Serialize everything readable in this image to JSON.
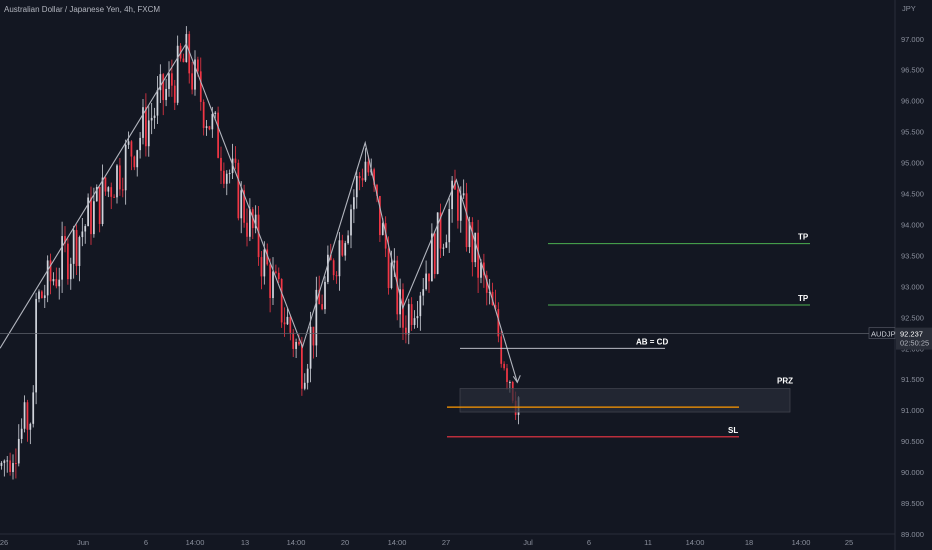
{
  "chart_data": {
    "type": "candlestick",
    "title": "Australian Dollar / Japanese Yen, 4h, FXCM",
    "currency": "JPY",
    "ylim": [
      89.0,
      97.4
    ],
    "y_ticks": [
      "97.000",
      "96.500",
      "96.000",
      "95.500",
      "95.000",
      "94.500",
      "94.000",
      "93.500",
      "93.000",
      "92.500",
      "92.000",
      "91.500",
      "91.000",
      "90.500",
      "90.000",
      "89.500",
      "89.000"
    ],
    "x_ticks": [
      "26",
      "Jun",
      "6",
      "14:00",
      "13",
      "14:00",
      "20",
      "14:00",
      "27",
      "Jul",
      "6",
      "11",
      "14:00",
      "18",
      "14:00",
      "25"
    ],
    "last_price": {
      "symbol": "AUDJPY",
      "price": "92.237",
      "countdown": "02:50:25",
      "value": 92.237
    },
    "pattern_points": [
      {
        "t": 0.0,
        "y": 92.0
      },
      {
        "t": 0.208,
        "y": 96.92
      },
      {
        "t": 0.338,
        "y": 92.02
      },
      {
        "t": 0.408,
        "y": 95.32
      },
      {
        "t": 0.45,
        "y": 92.65
      },
      {
        "t": 0.51,
        "y": 94.72
      },
      {
        "t": 0.578,
        "y": 91.45
      }
    ],
    "levels": [
      {
        "label": "TP",
        "value": 93.69,
        "color": "#4caf50"
      },
      {
        "label": "TP",
        "value": 92.7,
        "color": "#4caf50"
      },
      {
        "label": "AB = CD",
        "value": 92.0,
        "color": "#d1d4dc"
      },
      {
        "label": "PRZ",
        "value_high": 91.35,
        "value_low": 90.97,
        "color": "#2a2e39"
      },
      {
        "label": "",
        "value": 91.05,
        "color": "#ff9800"
      },
      {
        "label": "SL",
        "value": 90.57,
        "color": "#f23645"
      }
    ],
    "bull_color": "#d1d4dc",
    "bear_color": "#f23645"
  }
}
